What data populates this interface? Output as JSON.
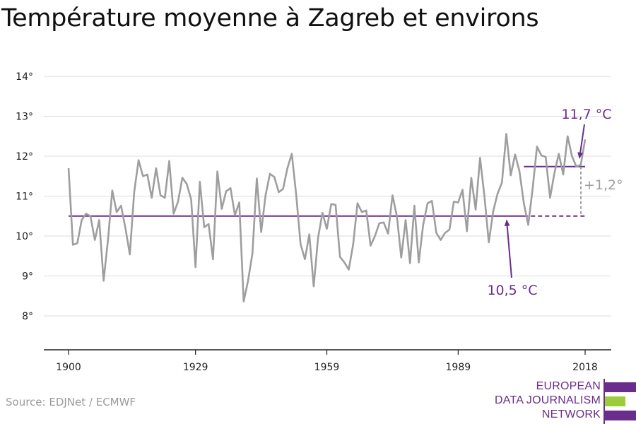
{
  "title": "Température moyenne à Zagreb et environs",
  "source": "Source: EDJNet / ECMWF",
  "logo": {
    "lines": [
      "EUROPEAN",
      "DATA JOURNALISM",
      "NETWORK"
    ],
    "colors": {
      "purple": "#6b2d8b",
      "green": "#9ccc3a"
    }
  },
  "colors": {
    "series": "#9e9e9e",
    "baseline": "#6a2c91",
    "delta": "#9e9e9e",
    "grid": "#dddddd"
  },
  "chart_data": {
    "type": "line",
    "title": "Température moyenne à Zagreb et environs",
    "xlabel": "",
    "ylabel": "",
    "xlim": [
      1900,
      2018
    ],
    "ylim": [
      7,
      14
    ],
    "y_ticks": [
      8,
      9,
      10,
      11,
      12,
      13,
      14
    ],
    "y_tick_labels": [
      "8°",
      "9°",
      "10°",
      "11°",
      "12°",
      "13°",
      "14°"
    ],
    "x_ticks": [
      1900,
      1929,
      1959,
      1989,
      2018
    ],
    "x_tick_labels": [
      "1900",
      "1929",
      "1959",
      "1989",
      "2018"
    ],
    "grid": true,
    "series": [
      {
        "x": [
          1900,
          1901,
          1902,
          1903,
          1904,
          1905,
          1906,
          1907,
          1908,
          1909,
          1910,
          1911,
          1912,
          1913,
          1914,
          1915,
          1916,
          1917,
          1918,
          1919,
          1920,
          1921,
          1922,
          1923,
          1924,
          1925,
          1926,
          1927,
          1928,
          1929,
          1930,
          1931,
          1932,
          1933,
          1934,
          1935,
          1936,
          1937,
          1938,
          1939,
          1940,
          1941,
          1942,
          1943,
          1944,
          1945,
          1946,
          1947,
          1948,
          1949,
          1950,
          1951,
          1952,
          1953,
          1954,
          1955,
          1956,
          1957,
          1958,
          1959,
          1960,
          1961,
          1962,
          1963,
          1964,
          1965,
          1966,
          1967,
          1968,
          1969,
          1970,
          1971,
          1972,
          1973,
          1974,
          1975,
          1976,
          1977,
          1978,
          1979,
          1980,
          1981,
          1982,
          1983,
          1984,
          1985,
          1986,
          1987,
          1988,
          1989,
          1990,
          1991,
          1992,
          1993,
          1994,
          1995,
          1996,
          1997,
          1998,
          1999,
          2000,
          2001,
          2002,
          2003,
          2004,
          2005,
          2006,
          2007,
          2008,
          2009,
          2010,
          2011,
          2012,
          2013,
          2014,
          2015,
          2016,
          2017,
          2018
        ],
        "values": [
          11.7,
          9.78,
          9.82,
          10.4,
          10.56,
          10.5,
          9.9,
          10.4,
          8.88,
          9.9,
          11.14,
          10.6,
          10.76,
          10.2,
          9.54,
          11.1,
          11.9,
          11.5,
          11.54,
          10.96,
          11.7,
          11.02,
          10.96,
          11.88,
          10.56,
          10.86,
          11.46,
          11.3,
          10.92,
          9.22,
          11.36,
          10.22,
          10.3,
          9.42,
          11.62,
          10.68,
          11.12,
          11.2,
          10.52,
          10.84,
          8.36,
          8.88,
          9.56,
          11.44,
          10.1,
          11.02,
          11.56,
          11.48,
          11.1,
          11.18,
          11.7,
          12.06,
          11.04,
          9.8,
          9.42,
          10.04,
          8.74,
          9.96,
          10.58,
          10.18,
          10.8,
          10.78,
          9.48,
          9.34,
          9.16,
          9.78,
          10.82,
          10.6,
          10.64,
          9.76,
          10.0,
          10.32,
          10.34,
          10.06,
          11.02,
          10.5,
          9.46,
          10.4,
          9.32,
          10.76,
          9.34,
          10.28,
          10.82,
          10.88,
          10.08,
          9.9,
          10.08,
          10.16,
          10.86,
          10.84,
          11.16,
          10.12,
          11.46,
          10.66,
          11.96,
          11.0,
          9.84,
          10.62,
          11.06,
          11.34,
          12.56,
          11.52,
          12.04,
          11.62,
          10.82,
          10.28,
          11.18,
          12.24,
          12.02,
          11.98,
          10.96,
          11.58,
          12.06,
          11.54,
          12.5,
          12.0,
          11.74,
          11.78,
          12.42
        ]
      }
    ],
    "annotations": [
      {
        "label": "10,5 °C",
        "value": 10.5,
        "from": 1900,
        "to": 2018
      },
      {
        "label": "11,7 °C",
        "value": 11.74,
        "from": 2004,
        "to": 2018
      },
      {
        "label": "+1,2°"
      }
    ]
  }
}
